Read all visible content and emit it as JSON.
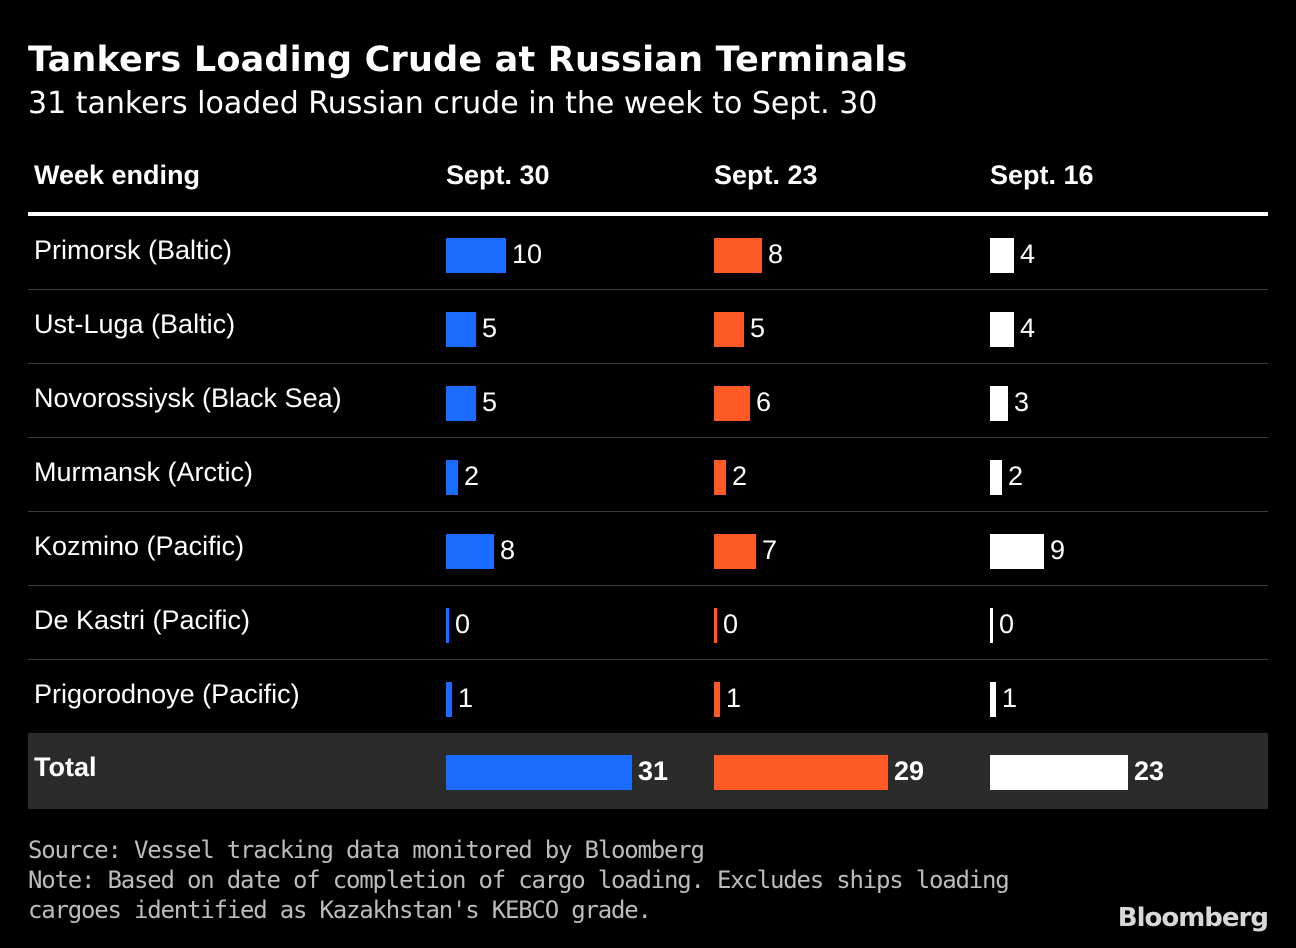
{
  "title": "Tankers Loading Crude at Russian Terminals",
  "subtitle": "31 tankers loaded Russian crude in the week to Sept. 30",
  "source": "Source: Vessel tracking data monitored by Bloomberg",
  "note_line1": "Note: Based on date of completion of cargo loading. Excludes ships loading",
  "note_line2": "cargoes identified as Kazakhstan's KEBCO grade.",
  "brand": "Bloomberg",
  "colors": {
    "background": "#000000",
    "sept30": "#1a6cff",
    "sept23": "#ff5a26",
    "sept16": "#ffffff",
    "total_row": "#2b2b2b"
  },
  "chart_data": {
    "type": "table",
    "header_label": "Week ending",
    "columns": [
      "Sept. 30",
      "Sept. 23",
      "Sept. 16"
    ],
    "rows": [
      {
        "label": "Primorsk (Baltic)",
        "values": [
          10,
          8,
          4
        ]
      },
      {
        "label": "Ust-Luga (Baltic)",
        "values": [
          5,
          5,
          4
        ]
      },
      {
        "label": "Novorossiysk (Black Sea)",
        "values": [
          5,
          6,
          3
        ]
      },
      {
        "label": "Murmansk (Arctic)",
        "values": [
          2,
          2,
          2
        ]
      },
      {
        "label": "Kozmino (Pacific)",
        "values": [
          8,
          7,
          9
        ]
      },
      {
        "label": "De Kastri (Pacific)",
        "values": [
          0,
          0,
          0
        ]
      },
      {
        "label": "Prigorodnoye (Pacific)",
        "values": [
          1,
          1,
          1
        ]
      }
    ],
    "total": {
      "label": "Total",
      "values": [
        31,
        29,
        23
      ]
    }
  }
}
